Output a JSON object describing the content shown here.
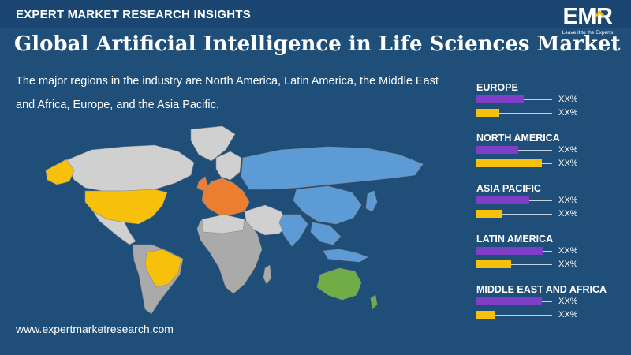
{
  "header": {
    "eyebrow": "EXPERT MARKET RESEARCH INSIGHTS",
    "title": "Global Artificial Intelligence in Life Sciences Market",
    "description": "The major regions in the industry are North America, Latin America, the Middle East and Africa, Europe, and the Asia Pacific."
  },
  "logo": {
    "text": "EMR",
    "tagline": "Leave it to the Experts"
  },
  "footer": {
    "url": "www.expertmarketresearch.com"
  },
  "colors": {
    "background": "#1f4e79",
    "purple_bar": "#7e3fc6",
    "yellow_bar": "#f7c10b",
    "europe_map": "#ec7e31",
    "north_america_map": "#f7c10b",
    "asia_pacific_map": "#5c9bd5",
    "latin_america_map": "#f7c10b",
    "oceania_map": "#70ad47",
    "other_map": "#d0d0d0"
  },
  "chart_data": {
    "type": "bar",
    "categories": [
      "EUROPE",
      "NORTH AMERICA",
      "ASIA PACIFIC",
      "LATIN AMERICA",
      "MIDDLE EAST AND AFRICA"
    ],
    "series": [
      {
        "values": [
          0.62,
          0.55,
          0.7,
          0.88,
          0.86
        ],
        "labels": [
          "XX%",
          "XX%",
          "XX%",
          "XX%",
          "XX%"
        ]
      },
      {
        "values": [
          0.3,
          0.86,
          0.34,
          0.46,
          0.25
        ],
        "labels": [
          "XX%",
          "XX%",
          "XX%",
          "XX%",
          "XX%"
        ]
      }
    ]
  }
}
